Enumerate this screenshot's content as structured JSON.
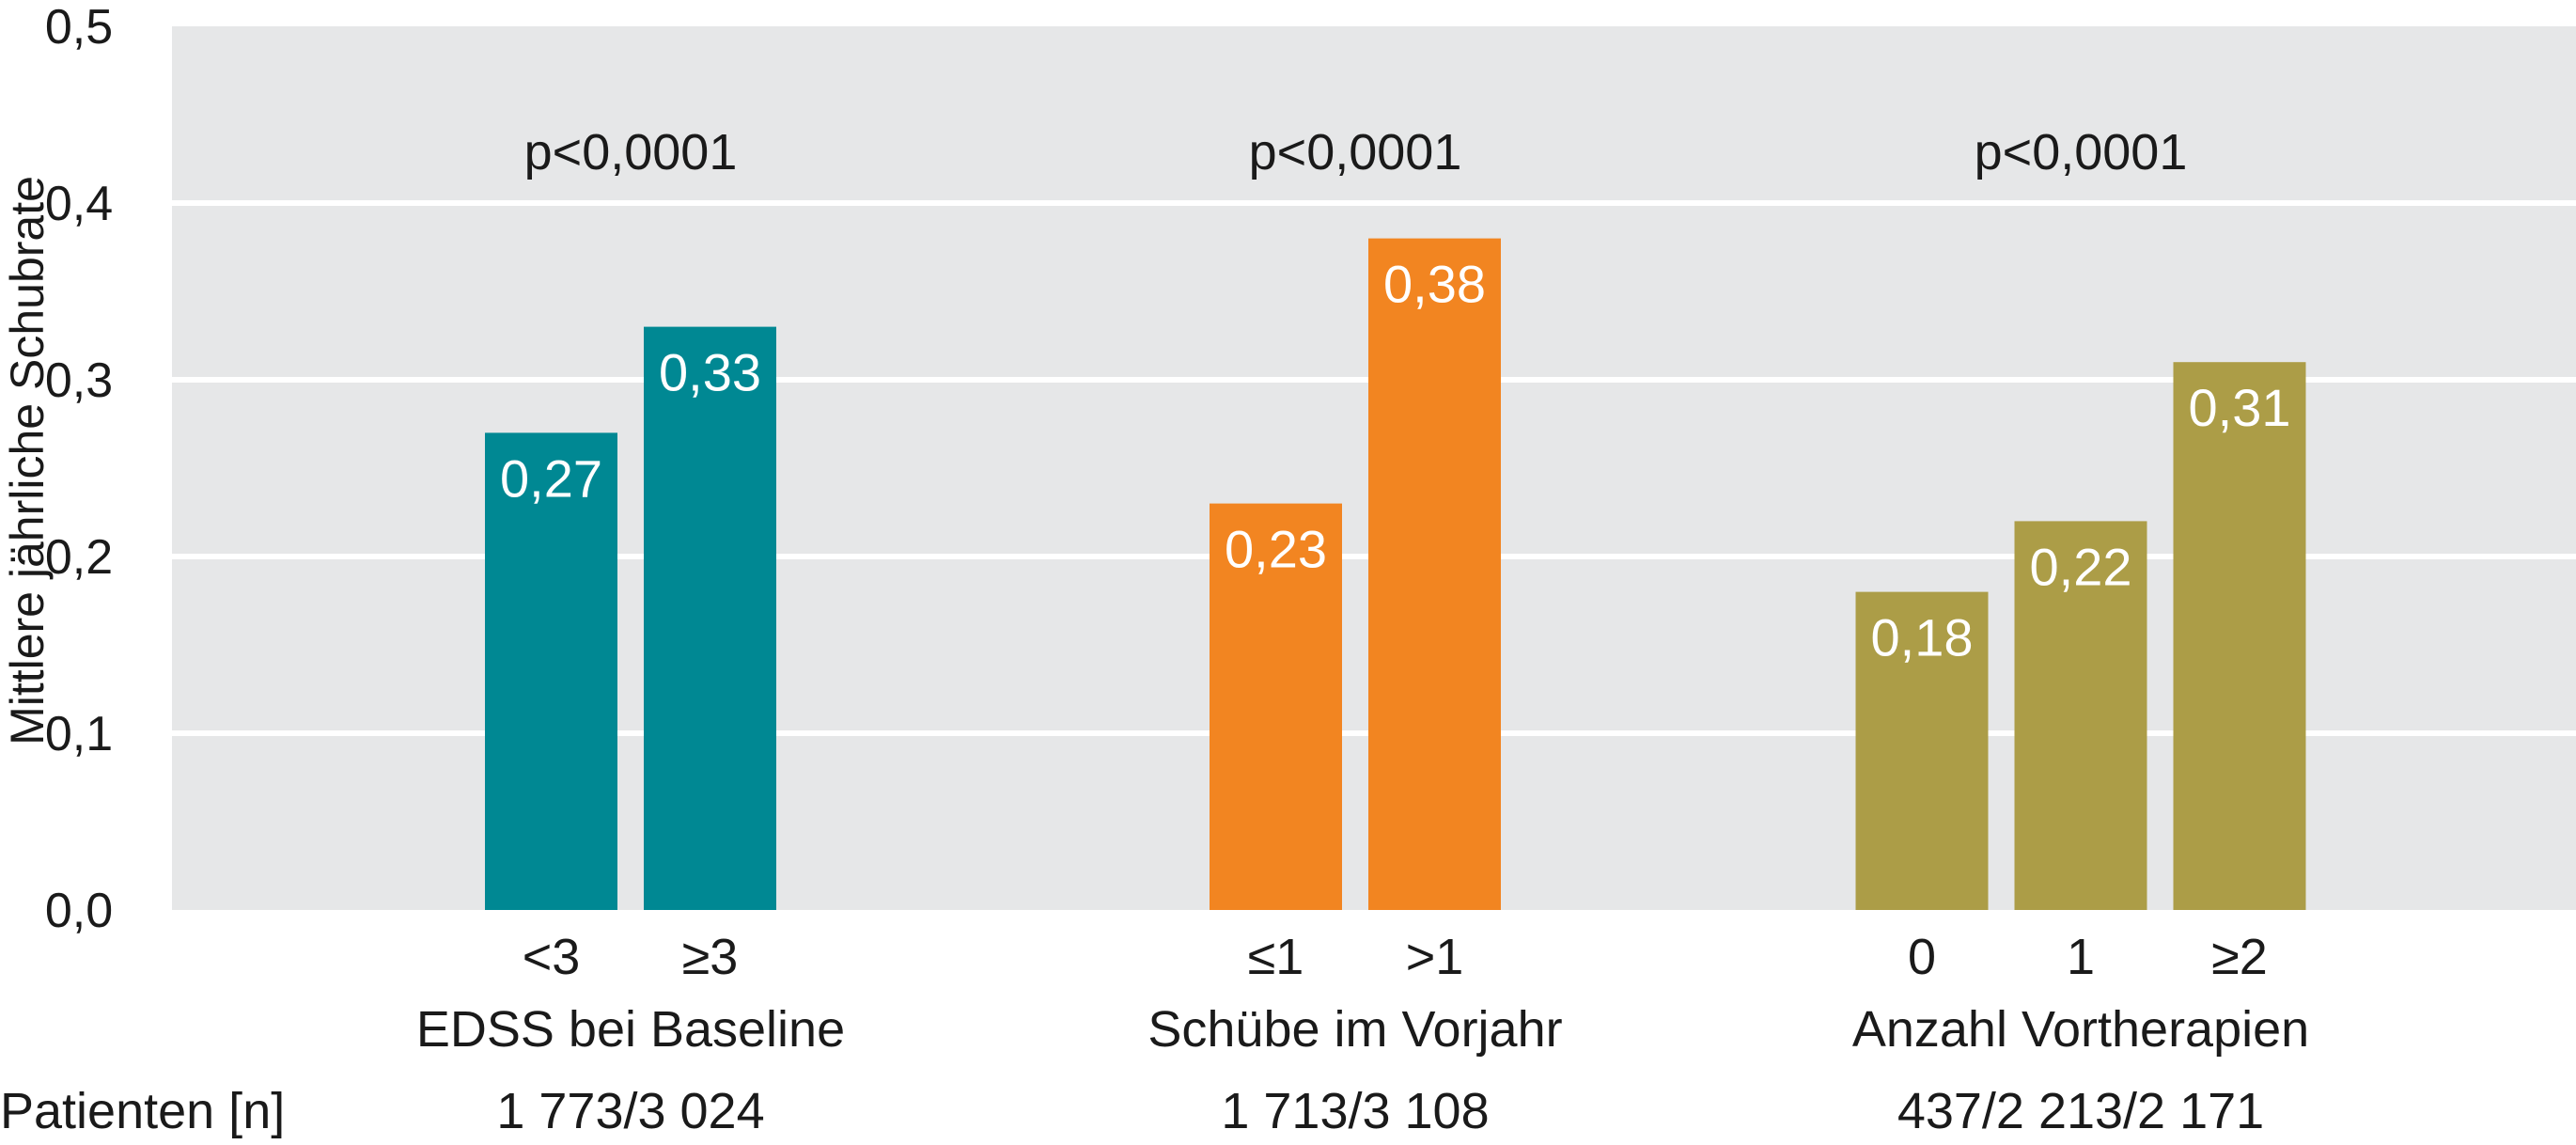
{
  "chart_data": {
    "type": "bar",
    "ylabel": "Mittlere jährliche Schubrate",
    "ylim": [
      0,
      0.5
    ],
    "yticks": [
      "0,0",
      "0,1",
      "0,2",
      "0,3",
      "0,4",
      "0,5"
    ],
    "ytick_values": [
      0,
      0.1,
      0.2,
      0.3,
      0.4,
      0.5
    ],
    "grid": true,
    "patients_label": "Patienten [n]",
    "groups": [
      {
        "name": "EDSS bei Baseline",
        "p_value": "p<0,0001",
        "color": "#008893",
        "patients": "1 773/3 024",
        "bars": [
          {
            "category": "<3",
            "value": 0.27,
            "label": "0,27"
          },
          {
            "category": "≥3",
            "value": 0.33,
            "label": "0,33"
          }
        ]
      },
      {
        "name": "Schübe im Vorjahr",
        "p_value": "p<0,0001",
        "color": "#f28521",
        "patients": "1 713/3 108",
        "bars": [
          {
            "category": "≤1",
            "value": 0.23,
            "label": "0,23"
          },
          {
            "category": ">1",
            "value": 0.38,
            "label": "0,38"
          }
        ]
      },
      {
        "name": "Anzahl Vortherapien",
        "p_value": "p<0,0001",
        "color": "#ac9d47",
        "patients": "437/2 213/2 171",
        "bars": [
          {
            "category": "0",
            "value": 0.18,
            "label": "0,18"
          },
          {
            "category": "1",
            "value": 0.22,
            "label": "0,22"
          },
          {
            "category": "≥2",
            "value": 0.31,
            "label": "0,31"
          }
        ]
      }
    ],
    "colors": {
      "plot_background": "#e6e7e8",
      "grid": "#ffffff",
      "value_label": "#ffffff"
    }
  }
}
